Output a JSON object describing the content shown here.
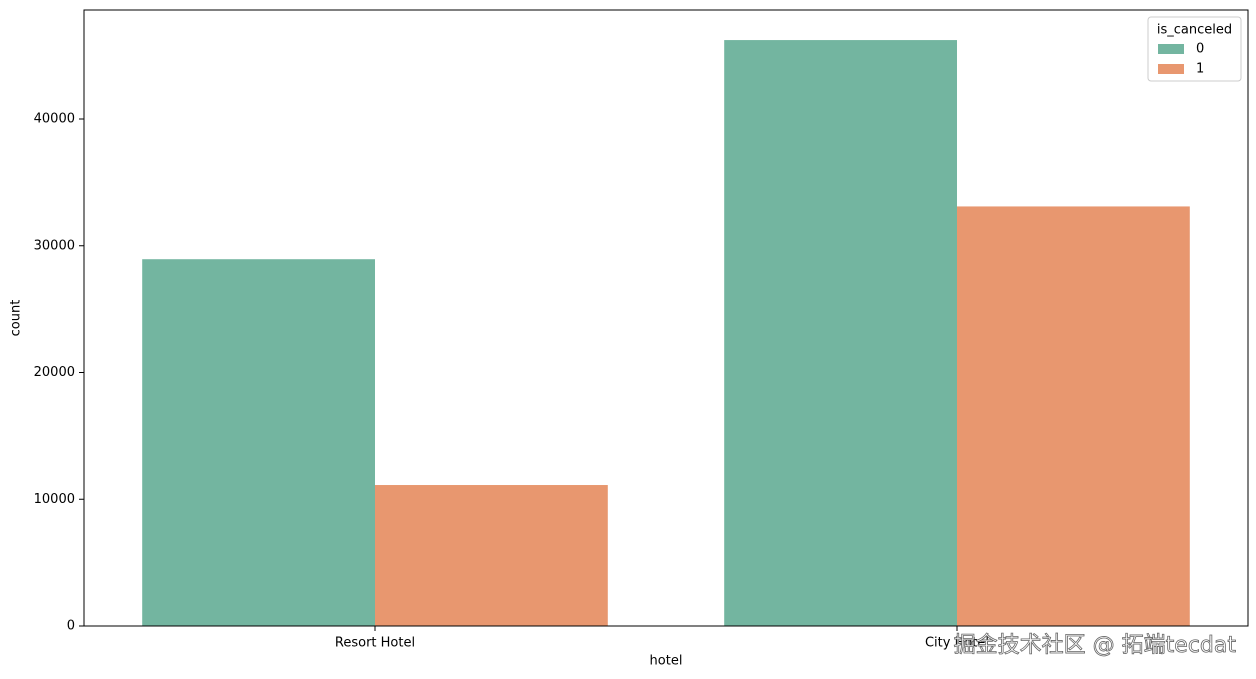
{
  "chart_data": {
    "type": "bar",
    "x_label": "hotel",
    "y_label": "count",
    "categories": [
      "Resort Hotel",
      "City Hotel"
    ],
    "legend_title": "is_canceled",
    "legend_position": "upper right",
    "series": [
      {
        "name": "0",
        "color": "#73b5a0",
        "values": [
          28938,
          46228
        ]
      },
      {
        "name": "1",
        "color": "#e8976f",
        "values": [
          11122,
          33102
        ]
      }
    ],
    "ylim": [
      0,
      48600
    ],
    "yticks": [
      0,
      10000,
      20000,
      30000,
      40000
    ],
    "grid": false,
    "watermark": "掘金技术社区 @ 拓端tecdat"
  }
}
